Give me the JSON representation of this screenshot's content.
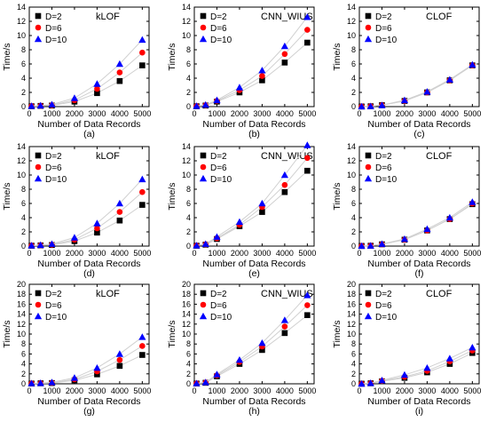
{
  "chart_data": [
    {
      "type": "scatter",
      "label": "(a)",
      "title": "kLOF",
      "xlabel": "Number of Data Records",
      "ylabel": "Time/s",
      "ylim": [
        0,
        14
      ],
      "yticks": [
        0,
        2,
        4,
        6,
        8,
        10,
        12,
        14
      ],
      "xticks": [
        0,
        1000,
        2000,
        3000,
        4000,
        5000
      ],
      "xlim": [
        0,
        5300
      ],
      "grid": false,
      "legend": "top-left",
      "x": [
        100,
        500,
        1000,
        2000,
        3000,
        4000,
        5000
      ],
      "series": [
        {
          "name": "D=2",
          "values": [
            0.05,
            0.1,
            0.15,
            0.7,
            1.9,
            3.6,
            5.8
          ]
        },
        {
          "name": "D=6",
          "values": [
            0.07,
            0.12,
            0.2,
            0.9,
            2.5,
            4.8,
            7.6
          ]
        },
        {
          "name": "D=10",
          "values": [
            0.09,
            0.15,
            0.3,
            1.2,
            3.2,
            6.0,
            9.4
          ]
        }
      ]
    },
    {
      "type": "scatter",
      "label": "(b)",
      "title": "CNN_WIUS",
      "xlabel": "Number of Data Records",
      "ylabel": "Time/s",
      "ylim": [
        0,
        14
      ],
      "yticks": [
        0,
        2,
        4,
        6,
        8,
        10,
        12,
        14
      ],
      "xticks": [
        0,
        1000,
        2000,
        3000,
        4000,
        5000
      ],
      "xlim": [
        0,
        5300
      ],
      "grid": false,
      "legend": "top-left",
      "x": [
        100,
        500,
        1000,
        2000,
        3000,
        4000,
        5000
      ],
      "series": [
        {
          "name": "D=2",
          "values": [
            0.05,
            0.15,
            0.7,
            2.0,
            3.7,
            6.2,
            9.0
          ]
        },
        {
          "name": "D=6",
          "values": [
            0.07,
            0.2,
            0.8,
            2.3,
            4.3,
            7.4,
            10.8
          ]
        },
        {
          "name": "D=10",
          "values": [
            0.09,
            0.25,
            0.9,
            2.7,
            5.1,
            8.5,
            12.6
          ]
        }
      ]
    },
    {
      "type": "scatter",
      "label": "(c)",
      "title": "CLOF",
      "xlabel": "Number of Data Records",
      "ylabel": "Time/s",
      "ylim": [
        0,
        14
      ],
      "yticks": [
        0,
        2,
        4,
        6,
        8,
        10,
        12,
        14
      ],
      "xticks": [
        0,
        1000,
        2000,
        3000,
        4000,
        5000
      ],
      "xlim": [
        0,
        5300
      ],
      "grid": false,
      "legend": "top-left",
      "x": [
        100,
        500,
        1000,
        2000,
        3000,
        4000,
        5000
      ],
      "series": [
        {
          "name": "D=2",
          "values": [
            0.02,
            0.05,
            0.2,
            0.8,
            2.0,
            3.7,
            5.8
          ]
        },
        {
          "name": "D=6",
          "values": [
            0.02,
            0.05,
            0.2,
            0.8,
            2.0,
            3.7,
            5.8
          ]
        },
        {
          "name": "D=10",
          "values": [
            0.02,
            0.05,
            0.2,
            0.9,
            2.1,
            3.8,
            5.9
          ]
        }
      ]
    },
    {
      "type": "scatter",
      "label": "(d)",
      "title": "kLOF",
      "xlabel": "Number of Data Records",
      "ylabel": "Time/s",
      "ylim": [
        0,
        14
      ],
      "yticks": [
        0,
        2,
        4,
        6,
        8,
        10,
        12,
        14
      ],
      "xticks": [
        0,
        1000,
        2000,
        3000,
        4000,
        5000
      ],
      "xlim": [
        0,
        5300
      ],
      "grid": false,
      "legend": "top-left",
      "x": [
        100,
        500,
        1000,
        2000,
        3000,
        4000,
        5000
      ],
      "series": [
        {
          "name": "D=2",
          "values": [
            0.05,
            0.1,
            0.15,
            0.7,
            1.9,
            3.6,
            5.8
          ]
        },
        {
          "name": "D=6",
          "values": [
            0.07,
            0.12,
            0.2,
            0.9,
            2.5,
            4.8,
            7.6
          ]
        },
        {
          "name": "D=10",
          "values": [
            0.09,
            0.15,
            0.3,
            1.2,
            3.2,
            6.0,
            9.4
          ]
        }
      ]
    },
    {
      "type": "scatter",
      "label": "(e)",
      "title": "CNN_WIUS",
      "xlabel": "Number of Data Records",
      "ylabel": "Time/s",
      "ylim": [
        0,
        14
      ],
      "yticks": [
        0,
        2,
        4,
        6,
        8,
        10,
        12,
        14
      ],
      "xticks": [
        0,
        1000,
        2000,
        3000,
        4000,
        5000
      ],
      "xlim": [
        0,
        5300
      ],
      "grid": false,
      "legend": "top-left",
      "x": [
        100,
        500,
        1000,
        2000,
        3000,
        4000,
        5000
      ],
      "series": [
        {
          "name": "D=2",
          "values": [
            0.05,
            0.2,
            1.0,
            2.8,
            4.8,
            7.6,
            10.6
          ]
        },
        {
          "name": "D=6",
          "values": [
            0.07,
            0.25,
            1.1,
            3.0,
            5.5,
            8.6,
            12.4
          ]
        },
        {
          "name": "D=10",
          "values": [
            0.09,
            0.3,
            1.3,
            3.4,
            6.0,
            10.0,
            14.2
          ]
        }
      ]
    },
    {
      "type": "scatter",
      "label": "(f)",
      "title": "CLOF",
      "xlabel": "Number of Data Records",
      "ylabel": "Time/s",
      "ylim": [
        0,
        14
      ],
      "yticks": [
        0,
        2,
        4,
        6,
        8,
        10,
        12,
        14
      ],
      "xticks": [
        0,
        1000,
        2000,
        3000,
        4000,
        5000
      ],
      "xlim": [
        0,
        5300
      ],
      "grid": false,
      "legend": "top-left",
      "x": [
        100,
        500,
        1000,
        2000,
        3000,
        4000,
        5000
      ],
      "series": [
        {
          "name": "D=2",
          "values": [
            0.02,
            0.05,
            0.25,
            0.9,
            2.2,
            3.8,
            5.9
          ]
        },
        {
          "name": "D=6",
          "values": [
            0.02,
            0.05,
            0.25,
            0.9,
            2.2,
            3.8,
            6.0
          ]
        },
        {
          "name": "D=10",
          "values": [
            0.02,
            0.06,
            0.3,
            1.0,
            2.4,
            4.0,
            6.2
          ]
        }
      ]
    },
    {
      "type": "scatter",
      "label": "(g)",
      "title": "kLOF",
      "xlabel": "Number of Data Records",
      "ylabel": "Time/s",
      "ylim": [
        0,
        20
      ],
      "yticks": [
        0,
        2,
        4,
        6,
        8,
        10,
        12,
        14,
        16,
        18,
        20
      ],
      "xticks": [
        0,
        1000,
        2000,
        3000,
        4000,
        5000
      ],
      "xlim": [
        0,
        5300
      ],
      "grid": false,
      "legend": "top-left",
      "x": [
        100,
        500,
        1000,
        2000,
        3000,
        4000,
        5000
      ],
      "series": [
        {
          "name": "D=2",
          "values": [
            0.05,
            0.1,
            0.15,
            0.7,
            1.9,
            3.6,
            5.8
          ]
        },
        {
          "name": "D=6",
          "values": [
            0.07,
            0.12,
            0.2,
            0.9,
            2.5,
            4.8,
            7.6
          ]
        },
        {
          "name": "D=10",
          "values": [
            0.09,
            0.15,
            0.3,
            1.2,
            3.2,
            6.0,
            9.4
          ]
        }
      ]
    },
    {
      "type": "scatter",
      "label": "(h)",
      "title": "CNN_WIUS",
      "xlabel": "Number of Data Records",
      "ylabel": "Time/s",
      "ylim": [
        0,
        20
      ],
      "yticks": [
        0,
        2,
        4,
        6,
        8,
        10,
        12,
        14,
        16,
        18,
        20
      ],
      "xticks": [
        0,
        1000,
        2000,
        3000,
        4000,
        5000
      ],
      "xlim": [
        0,
        5300
      ],
      "grid": false,
      "legend": "top-left",
      "x": [
        100,
        500,
        1000,
        2000,
        3000,
        4000,
        5000
      ],
      "series": [
        {
          "name": "D=2",
          "values": [
            0.05,
            0.2,
            1.5,
            4.0,
            6.8,
            10.2,
            13.8
          ]
        },
        {
          "name": "D=6",
          "values": [
            0.07,
            0.25,
            1.7,
            4.4,
            7.5,
            11.5,
            15.8
          ]
        },
        {
          "name": "D=10",
          "values": [
            0.09,
            0.3,
            1.9,
            4.8,
            8.2,
            12.8,
            17.8
          ]
        }
      ]
    },
    {
      "type": "scatter",
      "label": "(i)",
      "title": "CLOF",
      "xlabel": "Number of Data Records",
      "ylabel": "Time/s",
      "ylim": [
        0,
        20
      ],
      "yticks": [
        0,
        2,
        4,
        6,
        8,
        10,
        12,
        14,
        16,
        18,
        20
      ],
      "xticks": [
        0,
        1000,
        2000,
        3000,
        4000,
        5000
      ],
      "xlim": [
        0,
        5300
      ],
      "grid": false,
      "legend": "top-left",
      "x": [
        100,
        500,
        1000,
        2000,
        3000,
        4000,
        5000
      ],
      "series": [
        {
          "name": "D=2",
          "values": [
            0.02,
            0.1,
            0.5,
            1.2,
            2.3,
            4.0,
            6.2
          ]
        },
        {
          "name": "D=6",
          "values": [
            0.02,
            0.12,
            0.6,
            1.4,
            2.6,
            4.5,
            6.7
          ]
        },
        {
          "name": "D=10",
          "values": [
            0.02,
            0.15,
            0.7,
            1.8,
            3.2,
            5.1,
            7.3
          ]
        }
      ]
    }
  ],
  "colors": {
    "D=2": "#000000",
    "D=6": "#ff0000",
    "D=10": "#0000ff",
    "axis": "#000000",
    "line": "#d0d0d0"
  },
  "markers": {
    "D=2": "square",
    "D=6": "circle",
    "D=10": "triangle"
  }
}
